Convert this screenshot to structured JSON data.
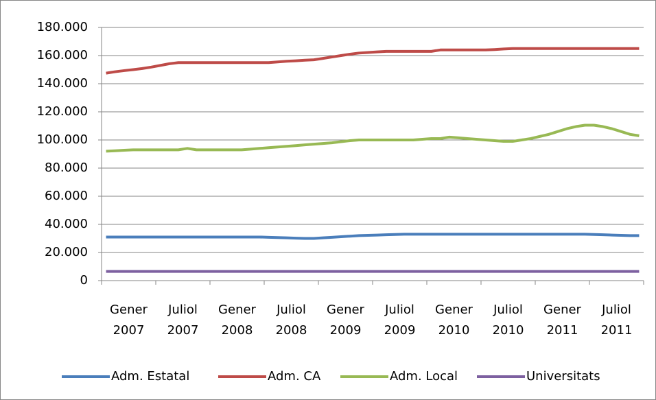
{
  "chart_data": {
    "type": "line",
    "categories": [
      "Gener 2007",
      null,
      null,
      null,
      null,
      null,
      "Juliol 2007",
      null,
      null,
      null,
      null,
      null,
      "Gener 2008",
      null,
      null,
      null,
      null,
      null,
      "Juliol 2008",
      null,
      null,
      null,
      null,
      null,
      "Gener 2009",
      null,
      null,
      null,
      null,
      null,
      "Juliol 2009",
      null,
      null,
      null,
      null,
      null,
      "Gener 2010",
      null,
      null,
      null,
      null,
      null,
      "Juliol 2010",
      null,
      null,
      null,
      null,
      null,
      "Gener 2011",
      null,
      null,
      null,
      null,
      null,
      "Juliol 2011",
      null,
      null,
      null,
      null,
      null
    ],
    "series": [
      {
        "name": "Adm. Estatal",
        "color": "#4a7ebb",
        "values": [
          31000,
          31000,
          31000,
          31000,
          31000,
          31000,
          31000,
          31000,
          31000,
          31000,
          31000,
          31000,
          31000,
          31000,
          31000,
          31000,
          31000,
          31000,
          30800,
          30600,
          30400,
          30200,
          30000,
          30000,
          30400,
          30800,
          31200,
          31600,
          32000,
          32200,
          32400,
          32600,
          32800,
          33000,
          33000,
          33000,
          33000,
          33000,
          33000,
          33000,
          33000,
          33000,
          33000,
          33000,
          33000,
          33000,
          33000,
          33000,
          33000,
          33000,
          33000,
          33000,
          33000,
          33000,
          32800,
          32600,
          32400,
          32200,
          32000,
          32000
        ]
      },
      {
        "name": "Adm. CA",
        "color": "#be4b48",
        "values": [
          147500,
          148500,
          149300,
          150000,
          150800,
          151800,
          153000,
          154200,
          155000,
          155000,
          155000,
          155000,
          155000,
          155000,
          155000,
          155000,
          155000,
          155000,
          155000,
          155500,
          156000,
          156300,
          156700,
          157000,
          158000,
          159000,
          160000,
          161000,
          161800,
          162200,
          162600,
          163000,
          163000,
          163000,
          163000,
          163000,
          163000,
          164000,
          164000,
          164000,
          164000,
          164000,
          164000,
          164300,
          164700,
          165000,
          165000,
          165000,
          165000,
          165000,
          165000,
          165000,
          165000,
          165000,
          165000,
          165000,
          165000,
          165000,
          165000,
          165000
        ]
      },
      {
        "name": "Adm. Local",
        "color": "#98b954",
        "values": [
          92000,
          92300,
          92700,
          93000,
          93000,
          93000,
          93000,
          93000,
          93000,
          94000,
          93000,
          93000,
          93000,
          93000,
          93000,
          93000,
          93500,
          94000,
          94500,
          95000,
          95500,
          96000,
          96500,
          97000,
          97500,
          98000,
          98800,
          99500,
          100000,
          100000,
          100000,
          100000,
          100000,
          100000,
          100000,
          100500,
          101000,
          101000,
          102000,
          101500,
          101000,
          100500,
          100000,
          99500,
          99000,
          99000,
          100000,
          101000,
          102500,
          104000,
          106000,
          108000,
          109500,
          110500,
          110500,
          109500,
          108000,
          106000,
          104000,
          103000
        ]
      },
      {
        "name": "Universitats",
        "color": "#7d60a0",
        "values": [
          6500,
          6500,
          6500,
          6500,
          6500,
          6500,
          6500,
          6500,
          6500,
          6500,
          6500,
          6500,
          6500,
          6500,
          6500,
          6500,
          6500,
          6500,
          6500,
          6500,
          6500,
          6500,
          6500,
          6500,
          6500,
          6500,
          6500,
          6500,
          6500,
          6500,
          6500,
          6500,
          6500,
          6500,
          6500,
          6500,
          6500,
          6500,
          6500,
          6500,
          6500,
          6500,
          6500,
          6500,
          6500,
          6500,
          6500,
          6500,
          6500,
          6500,
          6500,
          6500,
          6500,
          6500,
          6500,
          6500,
          6500,
          6500,
          6500,
          6500
        ]
      }
    ],
    "ylim": [
      0,
      180000
    ],
    "yticks": [
      0,
      {
        "value": 20000,
        "label": "20.000"
      },
      {
        "value": 40000,
        "label": "40.000"
      },
      {
        "value": 60000,
        "label": "60.000"
      },
      {
        "value": 80000,
        "label": "80.000"
      },
      {
        "value": 100000,
        "label": "100.000"
      },
      {
        "value": 120000,
        "label": "120.000"
      },
      {
        "value": 140000,
        "label": "140.000"
      },
      {
        "value": 160000,
        "label": "160.000"
      },
      {
        "value": 180000,
        "label": "180.000"
      }
    ],
    "grid": true,
    "legend": "bottom"
  }
}
